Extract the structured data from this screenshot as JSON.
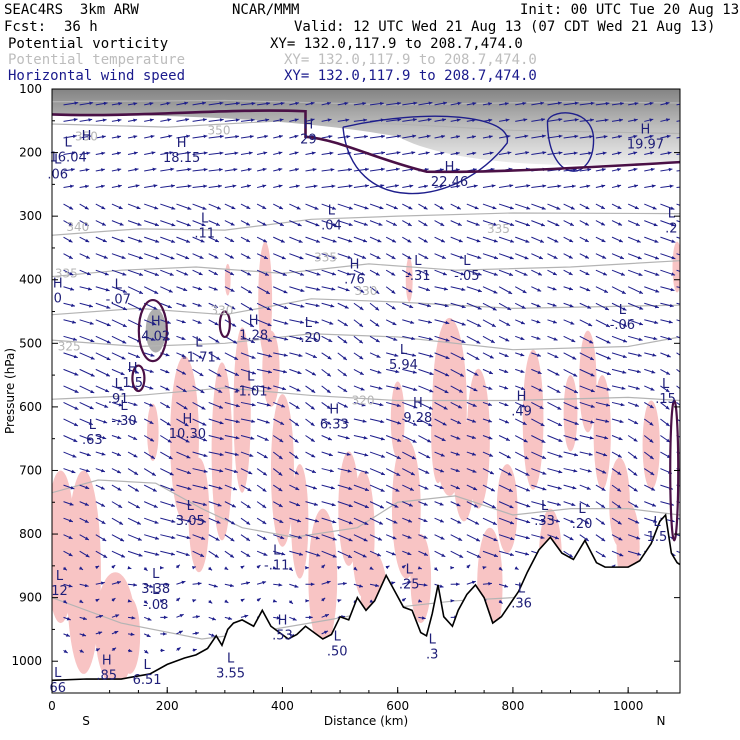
{
  "header": {
    "product": "SEAC4RS  3km ARW",
    "center": "NCAR/MMM",
    "init": "Init: 00 UTC Tue 20 Aug 13",
    "fcst_label": "Fcst:",
    "fcst_value": "36 h",
    "valid": "Valid: 12 UTC Wed 21 Aug 13 (07 CDT Wed 21 Aug 13)",
    "fields": [
      {
        "name": "Potential vorticity",
        "xy": "XY= 132.0,117.9 to 208.7,474.0",
        "style": "black"
      },
      {
        "name": "Potential temperature",
        "xy": "XY= 132.0,117.9 to 208.7,474.0",
        "style": "light"
      },
      {
        "name": "Horizontal wind speed",
        "xy": "XY= 132.0,117.9 to 208.7,474.0",
        "style": "blue"
      }
    ]
  },
  "chart_data": {
    "type": "cross-section",
    "xlabel": "Distance (km)",
    "ylabel": "Pressure (hPa)",
    "xlim": [
      0,
      1090
    ],
    "ylim": [
      1050,
      100
    ],
    "x_ticks": [
      0,
      200,
      400,
      600,
      800,
      1000
    ],
    "y_ticks": [
      100,
      200,
      300,
      400,
      500,
      600,
      700,
      800,
      900,
      1000
    ],
    "end_labels": {
      "left": "S",
      "right": "N"
    },
    "colors": {
      "pv": "#4a1046",
      "theta": "#b4b4b4",
      "wind": "#1e1e8c",
      "pv_shade": "#f8c4c4",
      "terrain": "#000000"
    },
    "theta_labels": [
      {
        "x": 25,
        "p": 317,
        "t": "340"
      },
      {
        "x": 5,
        "p": 390,
        "t": "335"
      },
      {
        "x": 10,
        "p": 505,
        "t": "325"
      },
      {
        "x": 275,
        "p": 448,
        "t": "330"
      },
      {
        "x": 525,
        "p": 418,
        "t": "330"
      },
      {
        "x": 455,
        "p": 365,
        "t": "335"
      },
      {
        "x": 755,
        "p": 320,
        "t": "335"
      },
      {
        "x": 520,
        "p": 590,
        "t": "320"
      },
      {
        "x": 270,
        "p": 165,
        "t": "350"
      },
      {
        "x": 40,
        "p": 175,
        "t": "350"
      }
    ],
    "pv_extrema": [
      {
        "type": "L",
        "x": 28,
        "p": 198,
        "v": "16.04"
      },
      {
        "type": "L",
        "x": 10,
        "p": 225,
        "v": ".06"
      },
      {
        "type": "H",
        "x": 60,
        "p": 188,
        "v": ""
      },
      {
        "type": "H",
        "x": 225,
        "p": 199,
        "v": "18.15"
      },
      {
        "type": "L",
        "x": 265,
        "p": 318,
        "v": ".11"
      },
      {
        "type": "H",
        "x": 445,
        "p": 170,
        "v": "29"
      },
      {
        "type": "L",
        "x": 485,
        "p": 305,
        "v": ".04"
      },
      {
        "type": "H",
        "x": 690,
        "p": 237,
        "v": "22.46"
      },
      {
        "type": "H",
        "x": 1030,
        "p": 178,
        "v": "19.97"
      },
      {
        "type": "L",
        "x": 1075,
        "p": 310,
        "v": ".2"
      },
      {
        "type": "H",
        "x": 10,
        "p": 420,
        "v": "0"
      },
      {
        "type": "L",
        "x": 115,
        "p": 422,
        "v": "-.07"
      },
      {
        "type": "H",
        "x": 180,
        "p": 480,
        "v": "4.02"
      },
      {
        "type": "L",
        "x": 255,
        "p": 513,
        "v": "-1.71"
      },
      {
        "type": "H",
        "x": 350,
        "p": 478,
        "v": "1.28"
      },
      {
        "type": "L",
        "x": 445,
        "p": 482,
        "v": "-.20"
      },
      {
        "type": "H",
        "x": 525,
        "p": 390,
        "v": ".76"
      },
      {
        "type": "L",
        "x": 635,
        "p": 385,
        "v": "-.31"
      },
      {
        "type": "L",
        "x": 720,
        "p": 385,
        "v": "-.05"
      },
      {
        "type": "L",
        "x": 610,
        "p": 525,
        "v": "5.94"
      },
      {
        "type": "L",
        "x": 990,
        "p": 462,
        "v": "-.06"
      },
      {
        "type": "H",
        "x": 140,
        "p": 553,
        "v": "1.5"
      },
      {
        "type": "L",
        "x": 115,
        "p": 578,
        "v": ".91"
      },
      {
        "type": "L",
        "x": 345,
        "p": 566,
        "v": "-1.01"
      },
      {
        "type": "L",
        "x": 125,
        "p": 613,
        "v": "-.30"
      },
      {
        "type": "L",
        "x": 70,
        "p": 643,
        "v": ".63"
      },
      {
        "type": "H",
        "x": 235,
        "p": 633,
        "v": "10.30"
      },
      {
        "type": "H",
        "x": 490,
        "p": 618,
        "v": "6.33"
      },
      {
        "type": "H",
        "x": 635,
        "p": 608,
        "v": "9.28"
      },
      {
        "type": "H",
        "x": 815,
        "p": 598,
        "v": ".49"
      },
      {
        "type": "L",
        "x": 1065,
        "p": 578,
        "v": ".15"
      },
      {
        "type": "L",
        "x": 240,
        "p": 770,
        "v": "3.05"
      },
      {
        "type": "L",
        "x": 390,
        "p": 840,
        "v": "-.11"
      },
      {
        "type": "L",
        "x": 855,
        "p": 770,
        "v": ".33"
      },
      {
        "type": "L",
        "x": 920,
        "p": 775,
        "v": ".20"
      },
      {
        "type": "L",
        "x": 1050,
        "p": 795,
        "v": "1.5"
      },
      {
        "type": "L",
        "x": 180,
        "p": 877,
        "v": "3.38"
      },
      {
        "type": "L",
        "x": 180,
        "p": 902,
        "v": "-.08"
      },
      {
        "type": "L",
        "x": 13,
        "p": 880,
        "v": "12"
      },
      {
        "type": "L",
        "x": 620,
        "p": 870,
        "v": ".25"
      },
      {
        "type": "L",
        "x": 815,
        "p": 900,
        "v": ".36"
      },
      {
        "type": "H",
        "x": 400,
        "p": 950,
        "v": ".53"
      },
      {
        "type": "L",
        "x": 495,
        "p": 975,
        "v": ".50"
      },
      {
        "type": "L",
        "x": 660,
        "p": 980,
        "v": ".3"
      },
      {
        "type": "H",
        "x": 95,
        "p": 1013,
        "v": ".85"
      },
      {
        "type": "L",
        "x": 165,
        "p": 1020,
        "v": "6.51"
      },
      {
        "type": "L",
        "x": 310,
        "p": 1010,
        "v": "3.55"
      },
      {
        "type": "L",
        "x": 10,
        "p": 1033,
        "v": "66"
      }
    ]
  }
}
